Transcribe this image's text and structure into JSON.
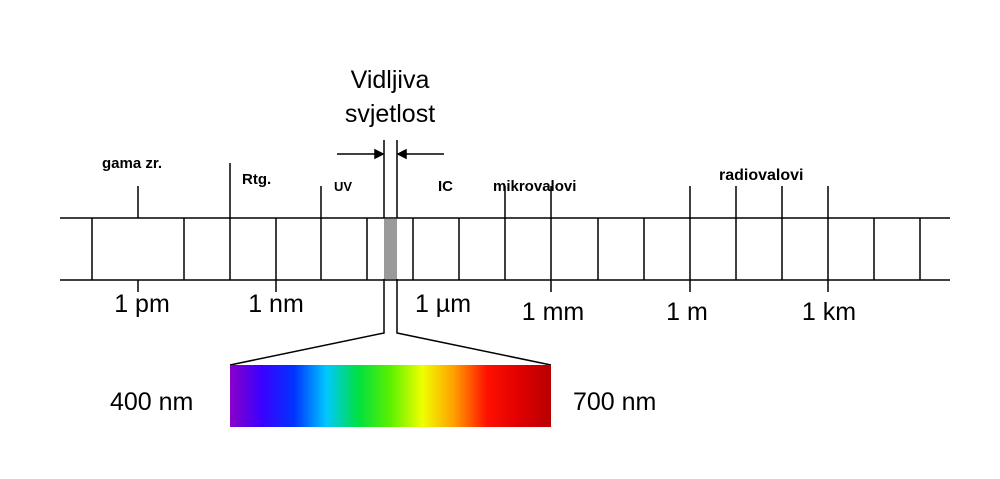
{
  "visible_light": {
    "title_line1": "Vidljiva",
    "title_line2": "svjetlost"
  },
  "bands": {
    "gamma": "gama zr.",
    "xray": "Rtg.",
    "uv": "UV",
    "ir": "IC",
    "microwave": "mikrovalovi",
    "radio": "radiovalovi"
  },
  "scale": {
    "pm": "1 pm",
    "nm": "1 nm",
    "um": "1 µm",
    "mm": "1 mm",
    "m": "1 m",
    "km": "1 km"
  },
  "spectrum": {
    "start_label": "400 nm",
    "end_label": "700 nm",
    "colors": [
      "#8a00c8",
      "#3a00ff",
      "#0033ff",
      "#00c8ff",
      "#00e040",
      "#5cf000",
      "#f0ff00",
      "#ff9c00",
      "#ff1000",
      "#e00000",
      "#b80000"
    ]
  },
  "colors": {
    "visible_band": "#9a9a9a",
    "lines": "#000000"
  }
}
